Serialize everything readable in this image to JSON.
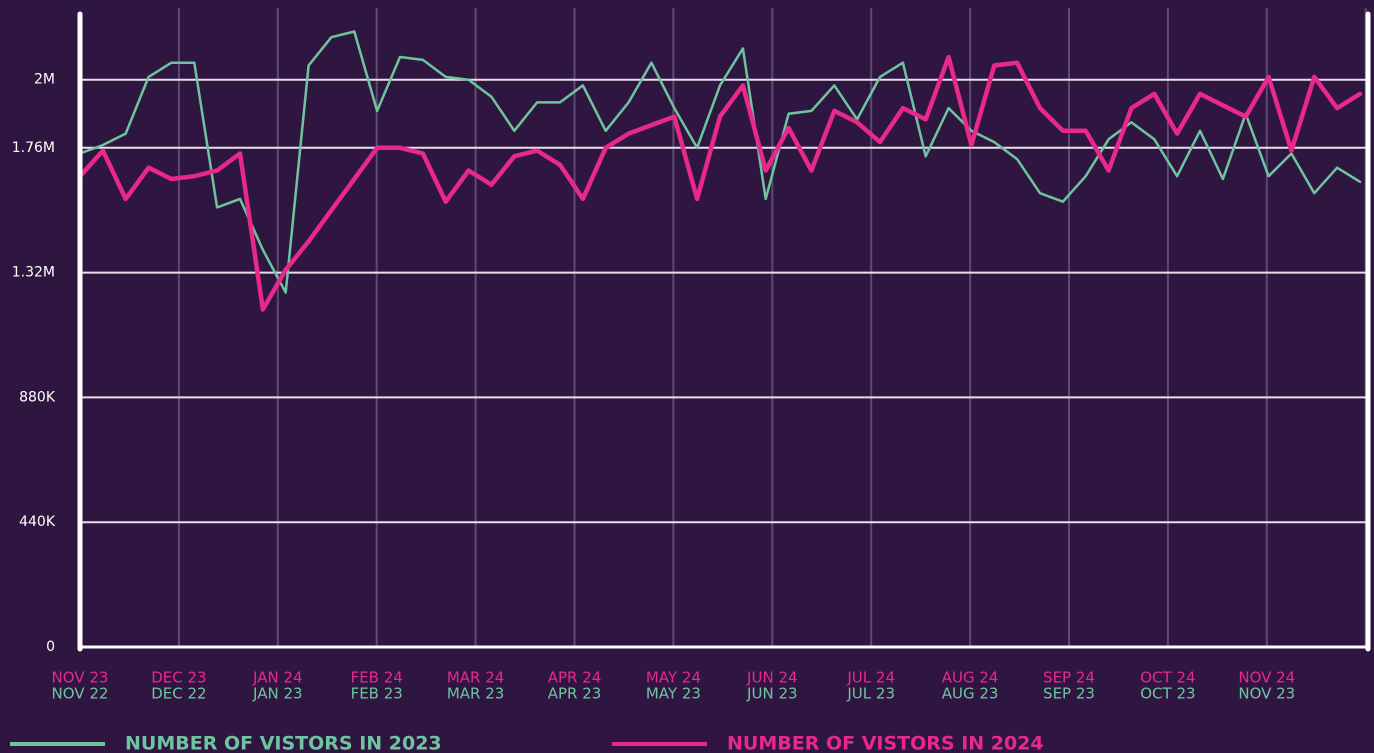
{
  "chart_data": {
    "type": "line",
    "x_tick_labels": [
      {
        "top": "NOV 23",
        "bottom": "NOV 22"
      },
      {
        "top": "DEC 23",
        "bottom": "DEC 22"
      },
      {
        "top": "JAN 24",
        "bottom": "JAN 23"
      },
      {
        "top": "FEB 24",
        "bottom": "FEB 23"
      },
      {
        "top": "MAR 24",
        "bottom": "MAR 23"
      },
      {
        "top": "APR 24",
        "bottom": "APR 23"
      },
      {
        "top": "MAY 24",
        "bottom": "MAY 23"
      },
      {
        "top": "JUN 24",
        "bottom": "JUN 23"
      },
      {
        "top": "JUL 24",
        "bottom": "JUL 23"
      },
      {
        "top": "AUG 24",
        "bottom": "AUG 23"
      },
      {
        "top": "SEP 24",
        "bottom": "SEP 23"
      },
      {
        "top": "OCT 24",
        "bottom": "OCT 23"
      },
      {
        "top": "NOV 24",
        "bottom": "NOV 23"
      }
    ],
    "ylim": [
      0,
      2200000
    ],
    "yticks": [
      0,
      {
        "value": 440000,
        "label": "440K"
      },
      {
        "value": 880000,
        "label": "880K"
      },
      {
        "value": 1320000,
        "label": "1.32M"
      },
      {
        "value": 1760000,
        "label": "1.76M"
      },
      {
        "value": 2000000,
        "label": "2M"
      }
    ],
    "grid": true,
    "legend": "bottom",
    "series": [
      {
        "name": "NUMBER OF VISTORS IN 2023",
        "color": "#6fc4a0",
        "values": [
          1740000,
          1770000,
          1810000,
          2010000,
          2060000,
          2060000,
          1550000,
          1580000,
          1400000,
          1250000,
          2050000,
          2150000,
          2170000,
          1890000,
          2080000,
          2070000,
          2010000,
          2000000,
          1940000,
          1820000,
          1920000,
          1920000,
          1980000,
          1820000,
          1920000,
          2060000,
          1900000,
          1760000,
          1980000,
          2110000,
          1580000,
          1880000,
          1890000,
          1980000,
          1860000,
          2010000,
          2060000,
          1730000,
          1900000,
          1820000,
          1780000,
          1720000,
          1600000,
          1570000,
          1660000,
          1790000,
          1850000,
          1790000,
          1660000,
          1820000,
          1650000,
          1880000,
          1660000,
          1740000,
          1600000,
          1690000,
          1640000
        ]
      },
      {
        "name": "NUMBER OF VISTORS IN 2024",
        "color": "#e8288a",
        "values": [
          1660000,
          1750000,
          1580000,
          1690000,
          1650000,
          1660000,
          1680000,
          1740000,
          1190000,
          1330000,
          1430000,
          1540000,
          1650000,
          1760000,
          1760000,
          1740000,
          1570000,
          1680000,
          1630000,
          1730000,
          1750000,
          1700000,
          1580000,
          1760000,
          1810000,
          1840000,
          1870000,
          1580000,
          1870000,
          1980000,
          1680000,
          1830000,
          1680000,
          1890000,
          1850000,
          1780000,
          1900000,
          1860000,
          2080000,
          1770000,
          2050000,
          2060000,
          1900000,
          1820000,
          1820000,
          1680000,
          1900000,
          1950000,
          1810000,
          1950000,
          1910000,
          1870000,
          2010000,
          1750000,
          2010000,
          1900000,
          1950000
        ]
      }
    ]
  }
}
